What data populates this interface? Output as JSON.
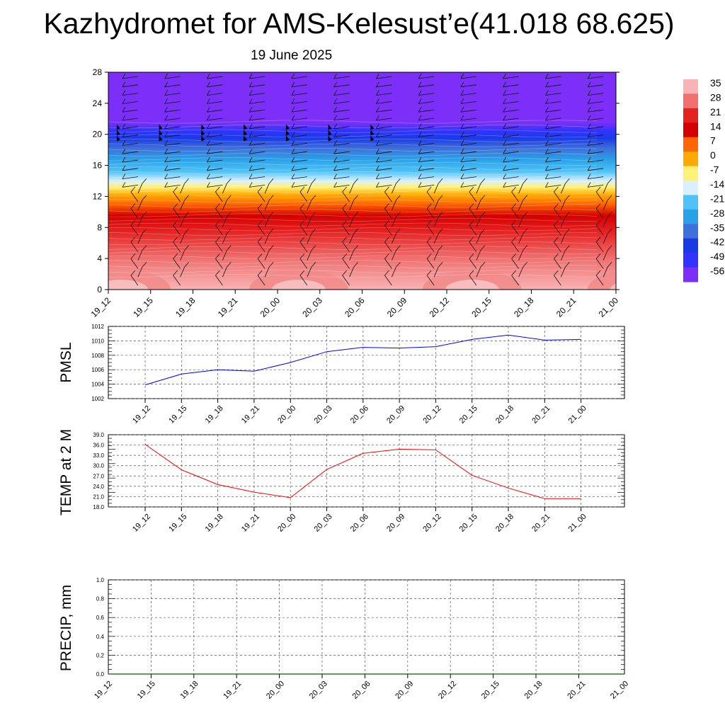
{
  "header": {
    "title": "Kazhydromet for AMS-Kelesust’e(41.018 68.625)",
    "subtitle": "19 June 2025"
  },
  "chart_data": [
    {
      "id": "cross-section",
      "type": "heatmap",
      "title": "",
      "xlabel": "",
      "ylabel": "",
      "x_ticks": [
        "19_12",
        "19_15",
        "19_18",
        "19_21",
        "20_00",
        "20_03",
        "20_06",
        "20_09",
        "20_12",
        "20_15",
        "20_18",
        "20_21",
        "21_00"
      ],
      "ylim": [
        0,
        28
      ],
      "y_ticks": [
        "0",
        "4",
        "8",
        "12",
        "16",
        "20",
        "24",
        "28"
      ],
      "colorbar": {
        "labels": [
          "35",
          "28",
          "21",
          "14",
          "7",
          "0",
          "-7",
          "-14",
          "-21",
          "-28",
          "-35",
          "-42",
          "-49",
          "-56"
        ],
        "colors": [
          "#f8b4b4",
          "#f07070",
          "#e52222",
          "#d40000",
          "#ff6600",
          "#ffaa00",
          "#fff176",
          "#d9f0ff",
          "#4fc3f7",
          "#29a0e8",
          "#3f6fd8",
          "#1a3ae8",
          "#3333ff",
          "#7b2ff7"
        ]
      },
      "z_values": [
        -56,
        -56,
        -56,
        -56,
        -49,
        -42,
        -35,
        -28,
        -21,
        -14,
        -7,
        0,
        7,
        14,
        21,
        28,
        35
      ],
      "z_heights": [
        28,
        24,
        22.5,
        21.5,
        20.5,
        19.5,
        18.2,
        16.8,
        15.2,
        14,
        13.2,
        12.2,
        11,
        9.5,
        7.5,
        4,
        0
      ]
    },
    {
      "id": "pmsl",
      "type": "line",
      "ylabel": "PMSL",
      "x": [
        "19_12",
        "19_15",
        "19_18",
        "19_21",
        "20_00",
        "20_03",
        "20_06",
        "20_09",
        "20_12",
        "20_15",
        "20_18",
        "20_21",
        "21_00"
      ],
      "values": [
        1003.9,
        1005.4,
        1006.0,
        1005.8,
        1007.0,
        1008.5,
        1009.1,
        1009.0,
        1009.2,
        1010.2,
        1010.8,
        1010.1,
        1010.2
      ],
      "ylim": [
        1002,
        1012
      ],
      "y_ticks": [
        "1002",
        "1004",
        "1006",
        "1008",
        "1010",
        "1012"
      ],
      "color": "#0000ff"
    },
    {
      "id": "temp2m",
      "type": "line",
      "ylabel": "TEMP at 2 M",
      "x": [
        "19_12",
        "19_15",
        "19_18",
        "19_21",
        "20_00",
        "20_03",
        "20_06",
        "20_09",
        "20_12",
        "20_15",
        "20_18",
        "20_21",
        "21_00"
      ],
      "values": [
        36.2,
        28.8,
        24.5,
        22.3,
        20.7,
        28.9,
        33.6,
        34.8,
        34.6,
        27.2,
        23.5,
        20.4,
        20.4
      ],
      "ylim": [
        18,
        39
      ],
      "y_ticks": [
        "18.0",
        "21.0",
        "24.0",
        "27.0",
        "30.0",
        "33.0",
        "36.0",
        "39.0"
      ],
      "color": "#ff0000"
    },
    {
      "id": "precip",
      "type": "line",
      "ylabel": "PRECIP, mm",
      "x_ticks": [
        "19_12",
        "19_15",
        "19_18",
        "19_21",
        "20_00",
        "20_03",
        "20_06",
        "20_09",
        "20_12",
        "20_15",
        "20_18",
        "20_21",
        "21_00"
      ],
      "values": [
        0,
        0,
        0,
        0,
        0,
        0,
        0,
        0,
        0,
        0,
        0,
        0,
        0
      ],
      "ylim": [
        0,
        1
      ],
      "y_ticks": [
        "0.0",
        "0.2",
        "0.4",
        "0.6",
        "0.8",
        "1.0"
      ],
      "color": "#006400"
    }
  ]
}
